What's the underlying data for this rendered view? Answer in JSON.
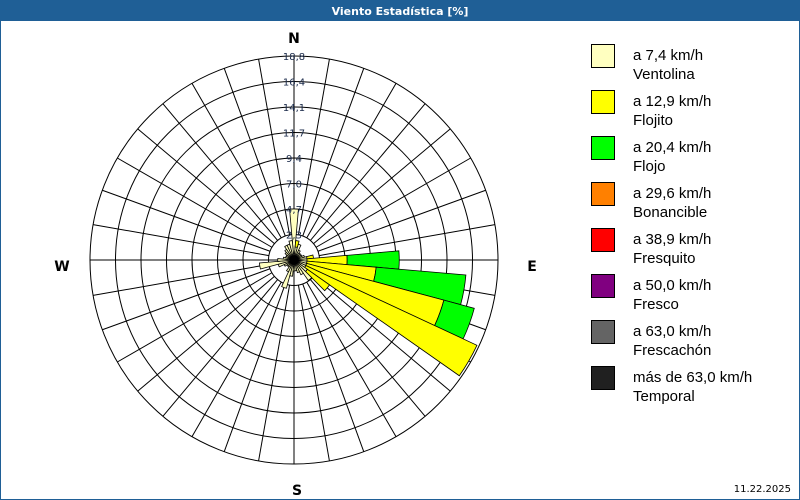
{
  "title": "Viento Estadística [%]",
  "date": "11.22.2025",
  "chart_data": {
    "type": "wind-rose",
    "title": "Viento Estadística [%]",
    "compass": [
      "N",
      "E",
      "S",
      "W"
    ],
    "ring_labels": [
      "2,3",
      "4,7",
      "7,0",
      "9,4",
      "11,7",
      "14,1",
      "16,4",
      "18,8"
    ],
    "rmax": 18.8,
    "sector_width_deg": 10,
    "legend": [
      {
        "range": "a 7,4 km/h",
        "name": "Ventolina",
        "color": "#ffffc0"
      },
      {
        "range": "a 12,9 km/h",
        "name": "Flojito",
        "color": "#ffff00"
      },
      {
        "range": "a 20,4 km/h",
        "name": "Flojo",
        "color": "#00ff00"
      },
      {
        "range": "a 29,6 km/h",
        "name": "Bonancible",
        "color": "#ff8000"
      },
      {
        "range": "a 38,9 km/h",
        "name": "Fresquito",
        "color": "#ff0000"
      },
      {
        "range": "a 50,0 km/h",
        "name": "Fresco",
        "color": "#800080"
      },
      {
        "range": "a 63,0 km/h",
        "name": "Frescachón",
        "color": "#646464"
      },
      {
        "range": "más de 63,0 km/h",
        "name": "Temporal",
        "color": "#202020"
      }
    ],
    "sectors": [
      {
        "dir": 0,
        "values": [
          4.7,
          0,
          0
        ]
      },
      {
        "dir": 10,
        "values": [
          1.2,
          0.6,
          0
        ]
      },
      {
        "dir": 20,
        "values": [
          1.5,
          0,
          0
        ]
      },
      {
        "dir": 30,
        "values": [
          1.0,
          0,
          0
        ]
      },
      {
        "dir": 40,
        "values": [
          0.8,
          0,
          0
        ]
      },
      {
        "dir": 50,
        "values": [
          0.8,
          0,
          0
        ]
      },
      {
        "dir": 60,
        "values": [
          0.8,
          0,
          0
        ]
      },
      {
        "dir": 70,
        "values": [
          1.0,
          0,
          0
        ]
      },
      {
        "dir": 80,
        "values": [
          1.2,
          0.6,
          0
        ]
      },
      {
        "dir": 90,
        "values": [
          1.2,
          3.7,
          4.8
        ]
      },
      {
        "dir": 100,
        "values": [
          1.2,
          6.4,
          8.3
        ]
      },
      {
        "dir": 110,
        "values": [
          1.2,
          13.1,
          2.9
        ]
      },
      {
        "dir": 120,
        "values": [
          1.2,
          17.4,
          0
        ]
      },
      {
        "dir": 130,
        "values": [
          1.5,
          2.5,
          0
        ]
      },
      {
        "dir": 140,
        "values": [
          2.3,
          0,
          0
        ]
      },
      {
        "dir": 150,
        "values": [
          1.5,
          0,
          0
        ]
      },
      {
        "dir": 160,
        "values": [
          1.2,
          0,
          0
        ]
      },
      {
        "dir": 170,
        "values": [
          1.0,
          0,
          0
        ]
      },
      {
        "dir": 180,
        "values": [
          1.0,
          0,
          0
        ]
      },
      {
        "dir": 190,
        "values": [
          1.5,
          0,
          0
        ]
      },
      {
        "dir": 200,
        "values": [
          2.7,
          0,
          0
        ]
      },
      {
        "dir": 210,
        "values": [
          1.2,
          0,
          0
        ]
      },
      {
        "dir": 220,
        "values": [
          0.8,
          0,
          0
        ]
      },
      {
        "dir": 230,
        "values": [
          0.8,
          0,
          0
        ]
      },
      {
        "dir": 240,
        "values": [
          1.0,
          0,
          0
        ]
      },
      {
        "dir": 250,
        "values": [
          1.5,
          0,
          0
        ]
      },
      {
        "dir": 260,
        "values": [
          3.2,
          0,
          0
        ]
      },
      {
        "dir": 270,
        "values": [
          1.5,
          0,
          0
        ]
      },
      {
        "dir": 280,
        "values": [
          1.0,
          0,
          0
        ]
      },
      {
        "dir": 290,
        "values": [
          0.8,
          0,
          0
        ]
      },
      {
        "dir": 300,
        "values": [
          0.8,
          0,
          0
        ]
      },
      {
        "dir": 310,
        "values": [
          1.0,
          0,
          0
        ]
      },
      {
        "dir": 320,
        "values": [
          1.2,
          0,
          0
        ]
      },
      {
        "dir": 330,
        "values": [
          1.5,
          0,
          0
        ]
      },
      {
        "dir": 340,
        "values": [
          1.5,
          0,
          0
        ]
      },
      {
        "dir": 350,
        "values": [
          1.8,
          0,
          0
        ]
      }
    ]
  }
}
